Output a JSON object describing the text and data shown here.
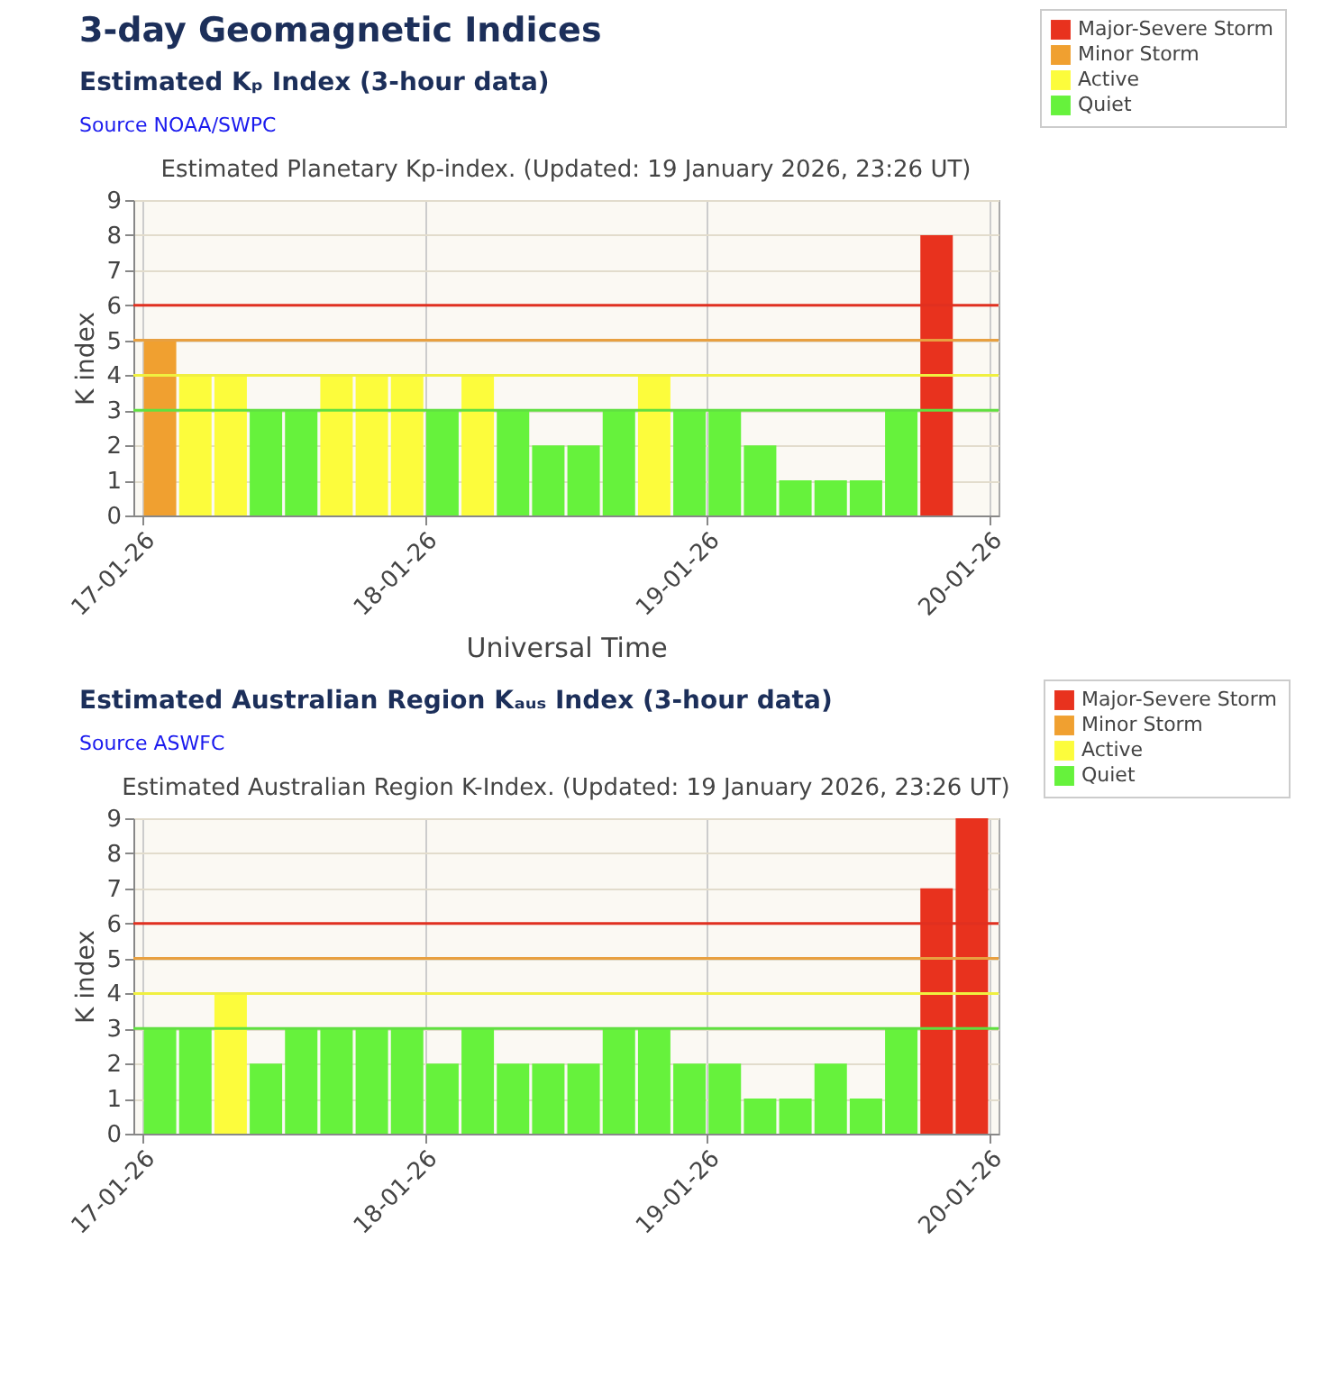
{
  "chart_data": [
    {
      "type": "bar",
      "title": "Estimated Planetary Kp-index. (Updated: 19 January 2026, 23:26 UT)",
      "annotations": [
        "3-day Geomagnetic Indices",
        "Estimated Kₚ Index (3-hour data)",
        "Source NOAA/SWPC"
      ],
      "xlabel": "Universal Time",
      "ylabel": "K index",
      "x": [
        "2026-01-17T01:30",
        "2026-01-17T04:30",
        "2026-01-17T07:30",
        "2026-01-17T10:30",
        "2026-01-17T13:30",
        "2026-01-17T16:30",
        "2026-01-17T19:30",
        "2026-01-17T22:30",
        "2026-01-18T01:30",
        "2026-01-18T04:30",
        "2026-01-18T07:30",
        "2026-01-18T10:30",
        "2026-01-18T13:30",
        "2026-01-18T16:30",
        "2026-01-18T19:30",
        "2026-01-18T22:30",
        "2026-01-19T01:30",
        "2026-01-19T04:30",
        "2026-01-19T07:30",
        "2026-01-19T10:30",
        "2026-01-19T13:30",
        "2026-01-19T16:30",
        "2026-01-19T19:30"
      ],
      "series": [
        {
          "name": "Major-Severe Storm",
          "color": "#e8321e",
          "values": [
            null,
            null,
            null,
            null,
            null,
            null,
            null,
            null,
            null,
            null,
            null,
            null,
            null,
            null,
            null,
            null,
            null,
            null,
            null,
            null,
            null,
            null,
            8
          ]
        },
        {
          "name": "Minor Storm",
          "color": "#f0a030",
          "values": [
            5,
            null,
            null,
            null,
            null,
            null,
            null,
            null,
            null,
            null,
            null,
            null,
            null,
            null,
            null,
            null,
            null,
            null,
            null,
            null,
            null,
            null,
            null
          ]
        },
        {
          "name": "Active",
          "color": "#fcfc3c",
          "values": [
            null,
            4,
            4,
            null,
            null,
            4,
            4,
            4,
            null,
            4,
            null,
            null,
            null,
            null,
            4,
            null,
            null,
            null,
            null,
            null,
            null,
            null,
            null
          ]
        },
        {
          "name": "Quiet",
          "color": "#66f23c",
          "values": [
            null,
            null,
            null,
            3,
            3,
            null,
            null,
            null,
            3,
            null,
            3,
            2,
            2,
            3,
            null,
            3,
            3,
            2,
            1,
            1,
            1,
            3,
            null
          ]
        }
      ],
      "xlim": [
        "2026-01-17",
        "2026-01-20"
      ],
      "xticks": [
        {
          "value": "2026-01-17",
          "label": "17-01-26"
        },
        {
          "value": "2026-01-18",
          "label": "18-01-26"
        },
        {
          "value": "2026-01-19",
          "label": "19-01-26"
        },
        {
          "value": "2026-01-20",
          "label": "20-01-26"
        }
      ],
      "ylim": [
        0,
        9
      ],
      "yticks": [
        0,
        1,
        2,
        3,
        4,
        5,
        6,
        7,
        8,
        9
      ],
      "ref_lines": [
        {
          "axis": "y",
          "value": 6,
          "color": "#e03020"
        },
        {
          "axis": "y",
          "value": 5,
          "color": "#e8a040"
        },
        {
          "axis": "y",
          "value": 4,
          "color": "#f0f040"
        },
        {
          "axis": "y",
          "value": 3,
          "color": "#60e040"
        }
      ],
      "grid": true,
      "legend": "top right"
    },
    {
      "type": "bar",
      "title": "Estimated Australian Region K-Index. (Updated: 19 January 2026, 23:26 UT)",
      "annotations": [
        "Estimated Australian Region Kₐᵤₛ Index (3-hour data)",
        "Source ASWFC"
      ],
      "ylabel": "K index",
      "x": [
        "2026-01-17T01:30",
        "2026-01-17T04:30",
        "2026-01-17T07:30",
        "2026-01-17T10:30",
        "2026-01-17T13:30",
        "2026-01-17T16:30",
        "2026-01-17T19:30",
        "2026-01-17T22:30",
        "2026-01-18T01:30",
        "2026-01-18T04:30",
        "2026-01-18T07:30",
        "2026-01-18T10:30",
        "2026-01-18T13:30",
        "2026-01-18T16:30",
        "2026-01-18T19:30",
        "2026-01-18T22:30",
        "2026-01-19T01:30",
        "2026-01-19T04:30",
        "2026-01-19T07:30",
        "2026-01-19T10:30",
        "2026-01-19T13:30",
        "2026-01-19T16:30",
        "2026-01-19T19:30",
        "2026-01-19T22:30"
      ],
      "series": [
        {
          "name": "Major-Severe Storm",
          "color": "#e8321e",
          "values": [
            null,
            null,
            null,
            null,
            null,
            null,
            null,
            null,
            null,
            null,
            null,
            null,
            null,
            null,
            null,
            null,
            null,
            null,
            null,
            null,
            null,
            null,
            7,
            9
          ]
        },
        {
          "name": "Minor Storm",
          "color": "#f0a030",
          "values": [
            null,
            null,
            null,
            null,
            null,
            null,
            null,
            null,
            null,
            null,
            null,
            null,
            null,
            null,
            null,
            null,
            null,
            null,
            null,
            null,
            null,
            null,
            null,
            null
          ]
        },
        {
          "name": "Active",
          "color": "#fcfc3c",
          "values": [
            null,
            null,
            4,
            null,
            null,
            null,
            null,
            null,
            null,
            null,
            null,
            null,
            null,
            null,
            null,
            null,
            null,
            null,
            null,
            null,
            null,
            null,
            null,
            null
          ]
        },
        {
          "name": "Quiet",
          "color": "#66f23c",
          "values": [
            3,
            3,
            null,
            2,
            3,
            3,
            3,
            3,
            2,
            3,
            2,
            2,
            2,
            3,
            3,
            2,
            2,
            1,
            1,
            2,
            1,
            3,
            null,
            null
          ]
        }
      ],
      "xlim": [
        "2026-01-17",
        "2026-01-20"
      ],
      "xticks": [
        {
          "value": "2026-01-17",
          "label": "17-01-26"
        },
        {
          "value": "2026-01-18",
          "label": "18-01-26"
        },
        {
          "value": "2026-01-19",
          "label": "19-01-26"
        },
        {
          "value": "2026-01-20",
          "label": "20-01-26"
        }
      ],
      "ylim": [
        0,
        9
      ],
      "yticks": [
        0,
        1,
        2,
        3,
        4,
        5,
        6,
        7,
        8,
        9
      ],
      "ref_lines": [
        {
          "axis": "y",
          "value": 6,
          "color": "#e03020"
        },
        {
          "axis": "y",
          "value": 5,
          "color": "#e8a040"
        },
        {
          "axis": "y",
          "value": 4,
          "color": "#f0f040"
        },
        {
          "axis": "y",
          "value": 3,
          "color": "#60e040"
        }
      ],
      "grid": true,
      "legend": "top right"
    }
  ]
}
